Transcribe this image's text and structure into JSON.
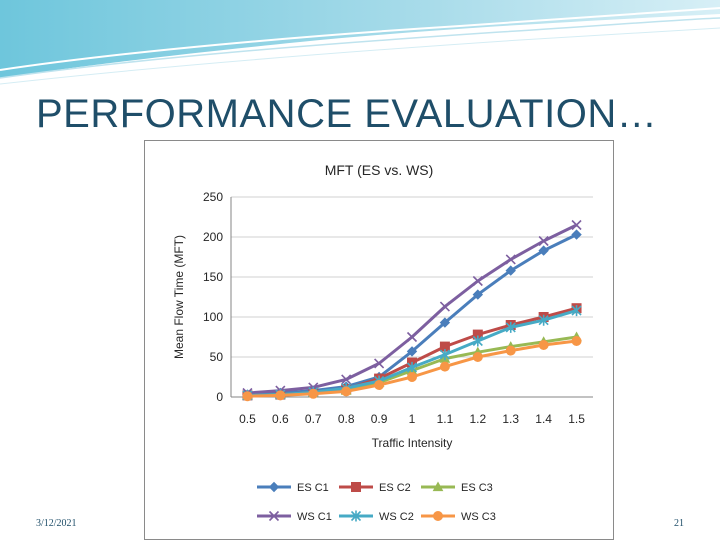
{
  "slide": {
    "title": "PERFORMANCE EVALUATION…",
    "date": "3/12/2021",
    "page": "21",
    "theme_color": "#1f4e69"
  },
  "chart_data": {
    "type": "line",
    "title": "MFT (ES vs. WS)",
    "xlabel": "Traffic Intensity",
    "ylabel": "Mean Flow Time (MFT)",
    "categories": [
      "0.5",
      "0.6",
      "0.7",
      "0.8",
      "0.9",
      "1",
      "1.1",
      "1.2",
      "1.3",
      "1.4",
      "1.5"
    ],
    "ylim": [
      0,
      250
    ],
    "yticks": [
      0,
      50,
      100,
      150,
      200,
      250
    ],
    "grid": "horizontal",
    "legend_position": "bottom",
    "series": [
      {
        "name": "ES C1",
        "color": "#4a7ebb",
        "marker": "diamond",
        "values": [
          3,
          5,
          8,
          13,
          25,
          57,
          93,
          128,
          158,
          183,
          203
        ]
      },
      {
        "name": "ES C2",
        "color": "#be4b48",
        "marker": "square",
        "values": [
          2,
          3,
          6,
          10,
          23,
          43,
          63,
          78,
          90,
          100,
          111
        ]
      },
      {
        "name": "ES C3",
        "color": "#98b954",
        "marker": "triangle",
        "values": [
          2,
          3,
          5,
          8,
          18,
          33,
          48,
          56,
          63,
          69,
          75
        ]
      },
      {
        "name": "WS C1",
        "color": "#7d5fa0",
        "marker": "x",
        "values": [
          5,
          8,
          12,
          22,
          42,
          75,
          113,
          145,
          172,
          195,
          215
        ]
      },
      {
        "name": "WS C2",
        "color": "#46aac5",
        "marker": "asterisk",
        "values": [
          2,
          3,
          6,
          11,
          20,
          37,
          53,
          70,
          87,
          96,
          108
        ]
      },
      {
        "name": "WS C3",
        "color": "#f79646",
        "marker": "circle",
        "values": [
          1,
          2,
          4,
          7,
          15,
          25,
          38,
          50,
          58,
          65,
          70
        ]
      }
    ]
  }
}
